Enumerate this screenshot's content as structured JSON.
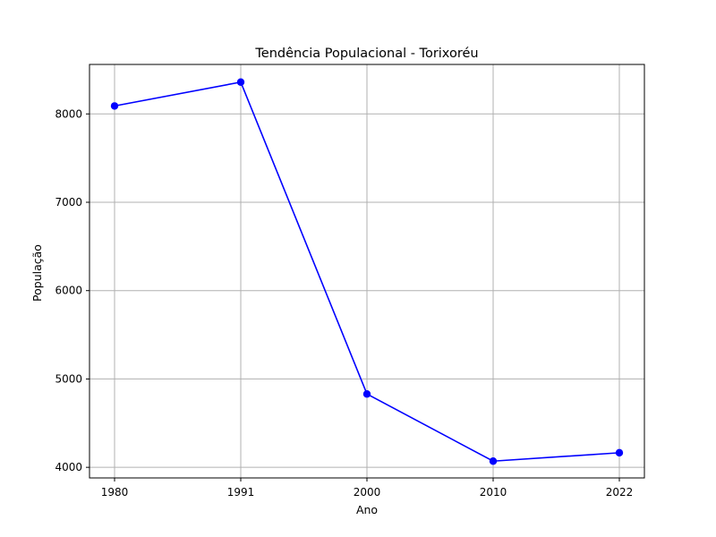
{
  "chart_data": {
    "type": "line",
    "title": "Tendência Populacional - Torixoréu",
    "xlabel": "Ano",
    "ylabel": "População",
    "x": [
      1980,
      1991,
      2000,
      2010,
      2022
    ],
    "x_tick_labels": [
      "1980",
      "1991",
      "2000",
      "2010",
      "2022"
    ],
    "series": [
      {
        "values": [
          8090,
          8360,
          4830,
          4070,
          4165
        ]
      }
    ],
    "y_ticks": [
      4000,
      5000,
      6000,
      7000,
      8000
    ],
    "y_tick_labels": [
      "4000",
      "5000",
      "6000",
      "7000",
      "8000"
    ],
    "ylim": [
      3880,
      8560
    ],
    "grid": true,
    "legend": "none",
    "line_color": "#0000ff",
    "marker": "circle"
  }
}
